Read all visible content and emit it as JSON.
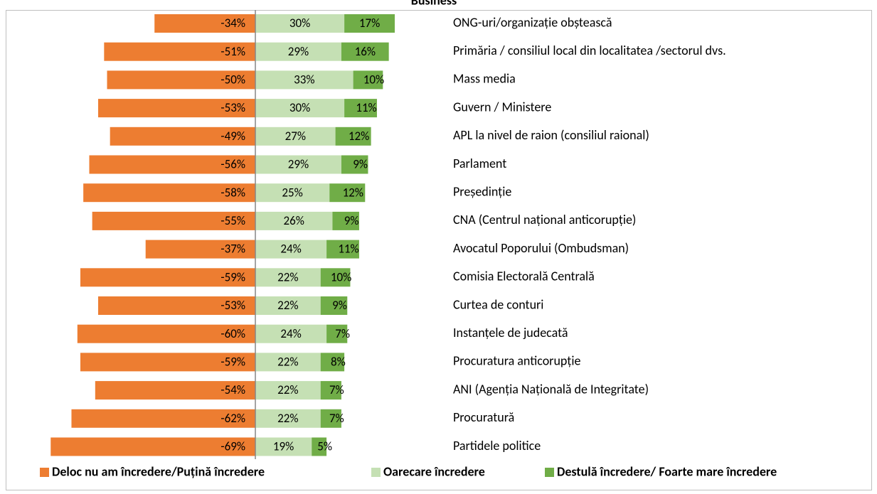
{
  "chart_data": {
    "type": "diverging_bar",
    "title": "Business",
    "categories": [
      "ONG-uri/organizație obștească",
      "Primăria / consiliul local din localitatea /sectorul dvs.",
      "Mass media",
      "Guvern / Ministere",
      "APL la nivel de raion (consiliul raional)",
      "Parlament",
      "Președinție",
      "CNA (Centrul național anticorupție)",
      "Avocatul Poporului (Ombudsman)",
      "Comisia Electorală Centrală",
      "Curtea de conturi",
      "Instanțele de judecată",
      "Procuratura anticorupție",
      "ANI (Agenția Națională de Integritate)",
      "Procuratură",
      "Partidele politice"
    ],
    "series": [
      {
        "name": "Deloc nu am încredere/Puțină încredere",
        "color": "#ed7d31",
        "values": [
          -34,
          -51,
          -50,
          -53,
          -49,
          -56,
          -58,
          -55,
          -37,
          -59,
          -53,
          -60,
          -59,
          -54,
          -62,
          -69
        ],
        "value_labels": [
          "-34%",
          "-51%",
          "-50%",
          "-53%",
          "-49%",
          "-56%",
          "-58%",
          "-55%",
          "-37%",
          "-59%",
          "-53%",
          "-60%",
          "-59%",
          "-54%",
          "-62%",
          "-69%"
        ]
      },
      {
        "name": "Oarecare încredere",
        "color": "#c5e0b4",
        "values": [
          30,
          29,
          33,
          30,
          27,
          29,
          25,
          26,
          24,
          22,
          22,
          24,
          22,
          22,
          22,
          19
        ],
        "value_labels": [
          "30%",
          "29%",
          "33%",
          "30%",
          "27%",
          "29%",
          "25%",
          "26%",
          "24%",
          "22%",
          "22%",
          "24%",
          "22%",
          "22%",
          "22%",
          "19%"
        ]
      },
      {
        "name": "Destulă încredere/ Foarte mare încredere",
        "color": "#70ad47",
        "values": [
          17,
          16,
          10,
          11,
          12,
          9,
          12,
          9,
          11,
          10,
          9,
          7,
          8,
          7,
          7,
          5
        ],
        "value_labels": [
          "17%",
          "16%",
          "10%",
          "11%",
          "12%",
          "9%",
          "12%",
          "9%",
          "11%",
          "10%",
          "9%",
          "7%",
          "8%",
          "7%",
          "7%",
          "5%"
        ]
      }
    ]
  }
}
